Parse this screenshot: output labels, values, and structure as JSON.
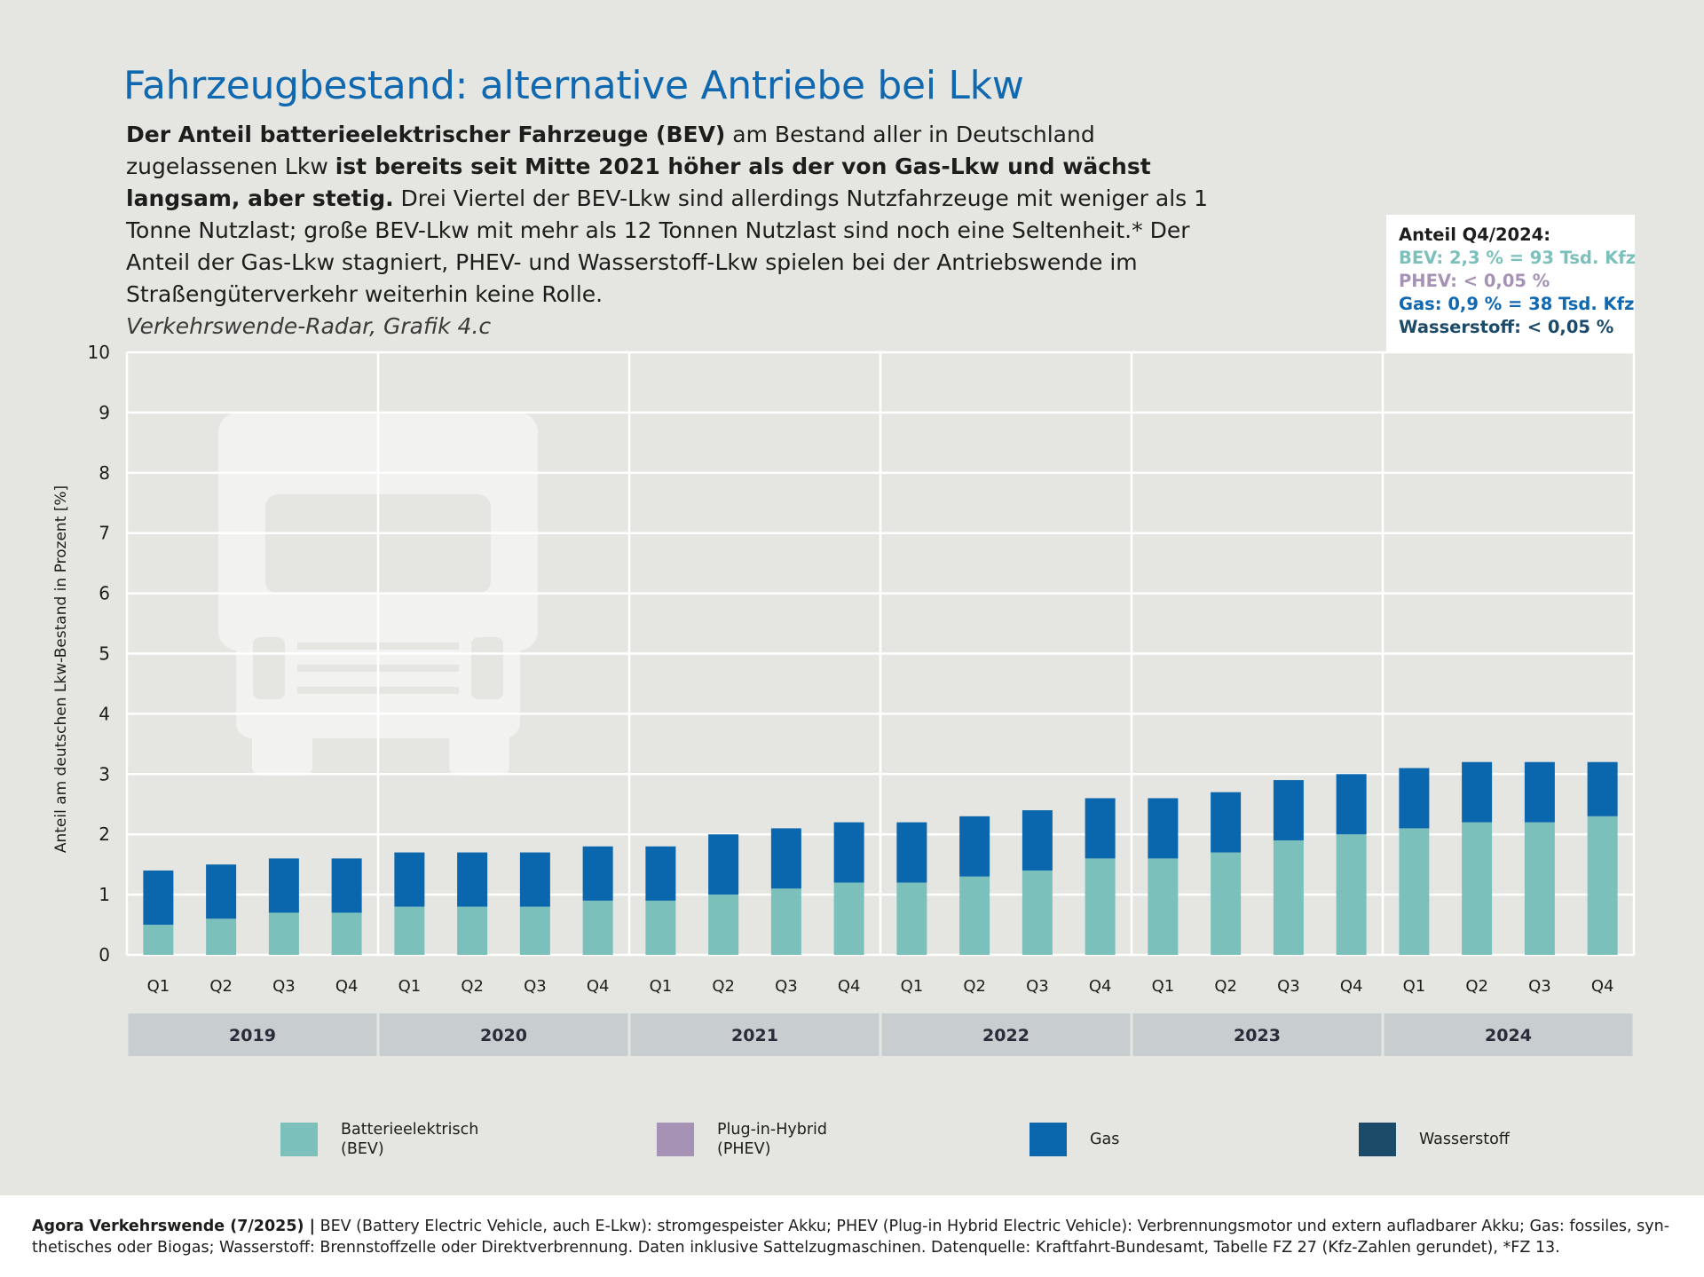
{
  "title": "Fahrzeugbestand: alternative Antriebe bei Lkw",
  "intro": {
    "bold1": "Der Anteil batterieelektrischer Fahrzeuge (BEV)",
    "text1": " am Bestand aller in Deutschland zugelassenen Lkw ",
    "bold2": "ist bereits seit Mitte 2021 höher als der von Gas-Lkw und wächst langsam, aber stetig.",
    "text2": " Drei Viertel der BEV-Lkw sind allerdings Nutzfahrzeuge mit weniger als 1 Tonne Nutzlast; große BEV-Lkw mit mehr als 12 Tonnen Nutzlast sind noch eine Seltenheit.* Der Anteil der Gas-Lkw stagniert, PHEV- und Wasser­stoff-Lkw spielen bei der Antriebswende im Straßengüterverkehr weiterhin keine Rolle.",
    "source": "Verkehrswende-Radar, Grafik 4.c"
  },
  "infobox": {
    "title": "Anteil Q4/2024:",
    "bev": "BEV: 2,3 % = 93 Tsd. Kfz",
    "phev": "PHEV: < 0,05 %",
    "gas": "Gas: 0,9 % = 38 Tsd. Kfz",
    "h2": "Wasserstoff: < 0,05 %"
  },
  "colors": {
    "bev": "#7cc0bc",
    "phev": "#a592b4",
    "gas": "#0a67ad",
    "h2": "#1c4a69",
    "year_band": "#c8ced0",
    "grid": "#ffffff"
  },
  "chart_data": {
    "type": "bar",
    "stacked": true,
    "ylabel": "Anteil am deutschen Lkw-Bestand in Prozent [%]",
    "xlabel": "",
    "ylim": [
      0,
      10
    ],
    "yticks": [
      "0",
      "1",
      "2",
      "3",
      "4",
      "5",
      "6",
      "7",
      "8",
      "9",
      "10"
    ],
    "grid": true,
    "years": [
      "2019",
      "2020",
      "2021",
      "2022",
      "2023",
      "2024"
    ],
    "quarters": [
      "Q1",
      "Q2",
      "Q3",
      "Q4"
    ],
    "categories": [
      "2019 Q1",
      "2019 Q2",
      "2019 Q3",
      "2019 Q4",
      "2020 Q1",
      "2020 Q2",
      "2020 Q3",
      "2020 Q4",
      "2021 Q1",
      "2021 Q2",
      "2021 Q3",
      "2021 Q4",
      "2022 Q1",
      "2022 Q2",
      "2022 Q3",
      "2022 Q4",
      "2023 Q1",
      "2023 Q2",
      "2023 Q3",
      "2023 Q4",
      "2024 Q1",
      "2024 Q2",
      "2024 Q3",
      "2024 Q4"
    ],
    "series": [
      {
        "key": "bev",
        "name": "Batterieelektrisch\n(BEV)",
        "values": [
          0.5,
          0.6,
          0.7,
          0.7,
          0.8,
          0.8,
          0.8,
          0.9,
          0.9,
          1.0,
          1.1,
          1.2,
          1.2,
          1.3,
          1.4,
          1.6,
          1.6,
          1.7,
          1.9,
          2.0,
          2.1,
          2.2,
          2.2,
          2.3
        ]
      },
      {
        "key": "phev",
        "name": "Plug-in-Hybrid\n(PHEV)",
        "values": [
          0,
          0,
          0,
          0,
          0,
          0,
          0,
          0,
          0,
          0,
          0,
          0,
          0,
          0,
          0,
          0,
          0,
          0,
          0,
          0,
          0,
          0,
          0,
          0
        ]
      },
      {
        "key": "gas",
        "name": "Gas",
        "values": [
          0.9,
          0.9,
          0.9,
          0.9,
          0.9,
          0.9,
          0.9,
          0.9,
          0.9,
          1.0,
          1.0,
          1.0,
          1.0,
          1.0,
          1.0,
          1.0,
          1.0,
          1.0,
          1.0,
          1.0,
          1.0,
          1.0,
          1.0,
          0.9
        ]
      },
      {
        "key": "h2",
        "name": "Wasserstoff",
        "values": [
          0,
          0,
          0,
          0,
          0,
          0,
          0,
          0,
          0,
          0,
          0,
          0,
          0,
          0,
          0,
          0,
          0,
          0,
          0,
          0,
          0,
          0,
          0,
          0
        ]
      }
    ],
    "legend_position": "bottom"
  },
  "footer": {
    "bold": "Agora Verkehrswende (7/2025) |",
    "text": " BEV (Battery Electric Vehicle, auch E-Lkw): stromgespeister Akku; PHEV (Plug-in Hybrid Electric Vehicle): Verbrennungsmotor und extern aufladbarer Akku; Gas: fossiles, syn­thetisches oder Biogas; Wasserstoff: Brennstoffzelle oder Direktverbrennung. Daten inklusive Sattelzugmaschinen. Datenquelle: Kraftfahrt-Bundesamt, Tabelle FZ 27 (Kfz-Zahlen gerundet), *FZ 13."
  }
}
